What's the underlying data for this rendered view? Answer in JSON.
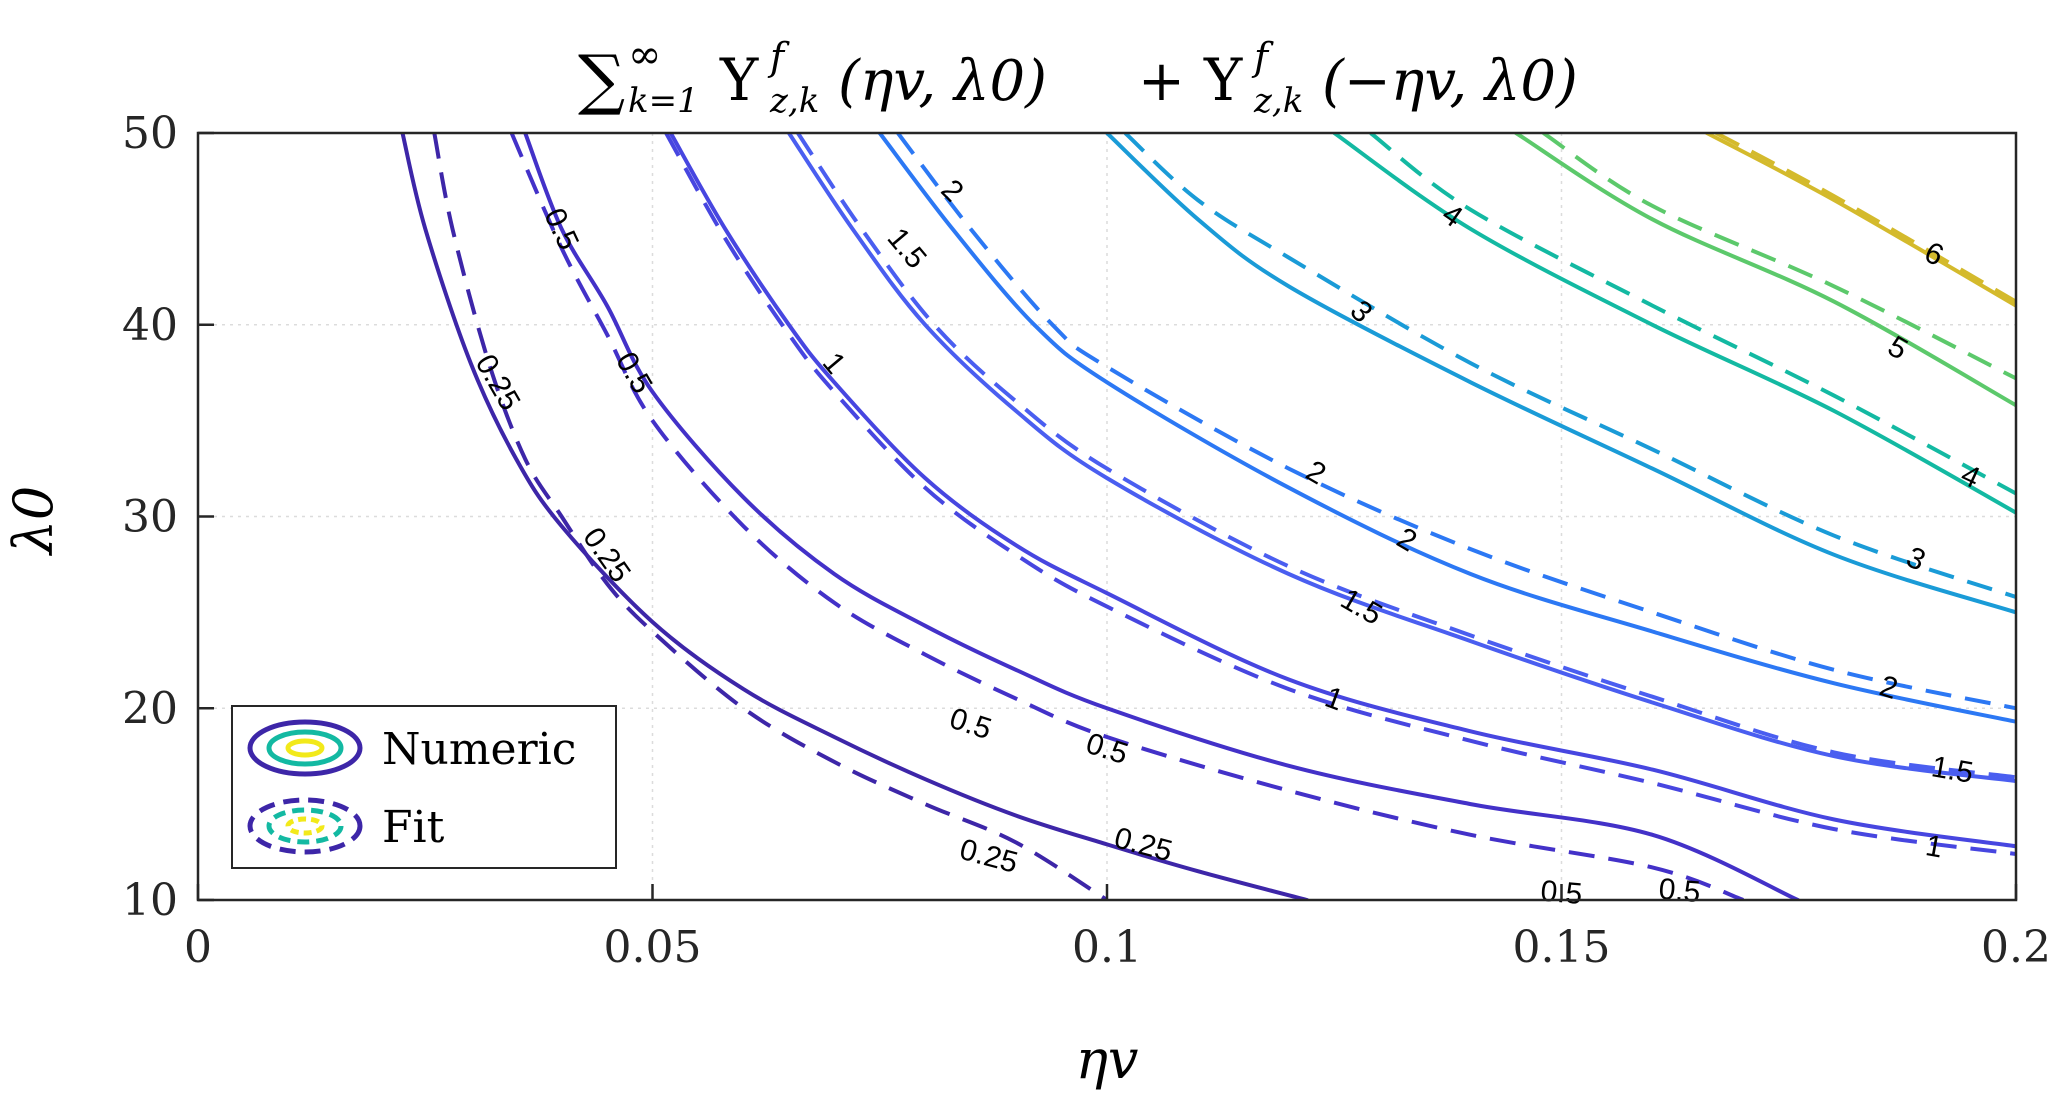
{
  "chart_data": {
    "type": "contour",
    "title": {
      "pre": "∑",
      "k_sub": "k=1",
      "inf_sup": "∞",
      "ups": "Υ",
      "f_sup": "f",
      "zk_sub": "z,k",
      "left_args": "(ηv, λ0)",
      "plus": "+",
      "right_args": "(−ηv, λ0)"
    },
    "xlabel": "ηv",
    "ylabel": "λ0",
    "xlim": [
      0,
      0.2
    ],
    "ylim": [
      10,
      50
    ],
    "x_ticks": [
      0,
      0.05,
      0.1,
      0.15,
      0.2
    ],
    "x_tick_labels": [
      "0",
      "0.05",
      "0.1",
      "0.15",
      "0.2"
    ],
    "y_ticks": [
      10,
      20,
      30,
      40,
      50
    ],
    "y_tick_labels": [
      "10",
      "20",
      "30",
      "40",
      "50"
    ],
    "grid": true,
    "legend": {
      "position": "bottom-left",
      "entries": [
        {
          "label": "Numeric",
          "style": "solid"
        },
        {
          "label": "Fit",
          "style": "dashed"
        }
      ]
    },
    "levels": [
      {
        "level": 0.25,
        "color": "#3d26a8",
        "numeric": [
          [
            0.0225,
            50
          ],
          [
            0.025,
            45
          ],
          [
            0.03,
            38
          ],
          [
            0.035,
            33
          ],
          [
            0.04,
            29.5
          ],
          [
            0.05,
            24.5
          ],
          [
            0.06,
            21
          ],
          [
            0.07,
            18.5
          ],
          [
            0.08,
            16.3
          ],
          [
            0.09,
            14.4
          ],
          [
            0.1,
            12.9
          ],
          [
            0.11,
            11.5
          ],
          [
            0.122,
            10
          ]
        ],
        "fit": [
          [
            0.026,
            50
          ],
          [
            0.028,
            45
          ],
          [
            0.032,
            38
          ],
          [
            0.036,
            33
          ],
          [
            0.04,
            30
          ],
          [
            0.045,
            26.5
          ],
          [
            0.05,
            24
          ],
          [
            0.06,
            20
          ],
          [
            0.07,
            17.2
          ],
          [
            0.08,
            15
          ],
          [
            0.09,
            13
          ],
          [
            0.1,
            10
          ]
        ]
      },
      {
        "level": 0.5,
        "color": "#4331c8",
        "numeric": [
          [
            0.036,
            50
          ],
          [
            0.04,
            45
          ],
          [
            0.045,
            41
          ],
          [
            0.05,
            36.5
          ],
          [
            0.06,
            31
          ],
          [
            0.07,
            27
          ],
          [
            0.08,
            24.3
          ],
          [
            0.09,
            22
          ],
          [
            0.1,
            20
          ],
          [
            0.12,
            17
          ],
          [
            0.14,
            15
          ],
          [
            0.16,
            13.4
          ],
          [
            0.176,
            10
          ]
        ],
        "fit": [
          [
            0.0345,
            50
          ],
          [
            0.04,
            44
          ],
          [
            0.045,
            39.5
          ],
          [
            0.05,
            35
          ],
          [
            0.06,
            29.5
          ],
          [
            0.07,
            25.5
          ],
          [
            0.08,
            22.8
          ],
          [
            0.09,
            20.5
          ],
          [
            0.1,
            18.5
          ],
          [
            0.12,
            15.7
          ],
          [
            0.14,
            13.4
          ],
          [
            0.16,
            11.7
          ],
          [
            0.17,
            10
          ]
        ]
      },
      {
        "level": 1,
        "color": "#4746e0",
        "numeric": [
          [
            0.052,
            50
          ],
          [
            0.058,
            45
          ],
          [
            0.065,
            40
          ],
          [
            0.07,
            37
          ],
          [
            0.08,
            32
          ],
          [
            0.09,
            28.5
          ],
          [
            0.1,
            26
          ],
          [
            0.12,
            21.5
          ],
          [
            0.14,
            18.8
          ],
          [
            0.16,
            16.8
          ],
          [
            0.18,
            14.2
          ],
          [
            0.2,
            12.8
          ]
        ],
        "fit": [
          [
            0.0515,
            50
          ],
          [
            0.058,
            44.5
          ],
          [
            0.065,
            39.5
          ],
          [
            0.07,
            36.5
          ],
          [
            0.08,
            31.5
          ],
          [
            0.09,
            28
          ],
          [
            0.1,
            25.3
          ],
          [
            0.12,
            21
          ],
          [
            0.14,
            18.3
          ],
          [
            0.16,
            16.1
          ],
          [
            0.18,
            13.7
          ],
          [
            0.2,
            12.4
          ]
        ]
      },
      {
        "level": 1.5,
        "color": "#4a5ef0",
        "numeric": [
          [
            0.065,
            50
          ],
          [
            0.072,
            45
          ],
          [
            0.08,
            40
          ],
          [
            0.09,
            35.5
          ],
          [
            0.1,
            32
          ],
          [
            0.12,
            27
          ],
          [
            0.14,
            23.5
          ],
          [
            0.16,
            20.3
          ],
          [
            0.18,
            17.5
          ],
          [
            0.2,
            16.2
          ]
        ],
        "fit": [
          [
            0.066,
            50
          ],
          [
            0.073,
            45
          ],
          [
            0.081,
            40
          ],
          [
            0.09,
            36
          ],
          [
            0.1,
            32.5
          ],
          [
            0.12,
            27.4
          ],
          [
            0.14,
            23.8
          ],
          [
            0.16,
            20.6
          ],
          [
            0.18,
            17.7
          ],
          [
            0.2,
            16.4
          ]
        ]
      },
      {
        "level": 2,
        "color": "#2c78f4",
        "numeric": [
          [
            0.075,
            50
          ],
          [
            0.083,
            45
          ],
          [
            0.092,
            40
          ],
          [
            0.1,
            37
          ],
          [
            0.12,
            31.5
          ],
          [
            0.14,
            27
          ],
          [
            0.16,
            24
          ],
          [
            0.18,
            21.3
          ],
          [
            0.2,
            19.3
          ]
        ],
        "fit": [
          [
            0.077,
            50
          ],
          [
            0.085,
            45
          ],
          [
            0.094,
            40
          ],
          [
            0.1,
            37.8
          ],
          [
            0.12,
            32.5
          ],
          [
            0.14,
            28.3
          ],
          [
            0.16,
            25
          ],
          [
            0.18,
            22
          ],
          [
            0.2,
            20
          ]
        ]
      },
      {
        "level": 3,
        "color": "#1a9bd7",
        "numeric": [
          [
            0.1,
            50
          ],
          [
            0.11,
            45.5
          ],
          [
            0.12,
            42
          ],
          [
            0.14,
            37
          ],
          [
            0.16,
            32.5
          ],
          [
            0.18,
            28
          ],
          [
            0.2,
            25
          ]
        ],
        "fit": [
          [
            0.102,
            50
          ],
          [
            0.11,
            46.5
          ],
          [
            0.12,
            43.5
          ],
          [
            0.14,
            38
          ],
          [
            0.16,
            33.5
          ],
          [
            0.18,
            29
          ],
          [
            0.2,
            25.8
          ]
        ]
      },
      {
        "level": 4,
        "color": "#13b9a2",
        "numeric": [
          [
            0.125,
            50
          ],
          [
            0.14,
            45
          ],
          [
            0.16,
            40
          ],
          [
            0.18,
            35.5
          ],
          [
            0.2,
            30.2
          ]
        ],
        "fit": [
          [
            0.129,
            50
          ],
          [
            0.14,
            46
          ],
          [
            0.16,
            41
          ],
          [
            0.18,
            36.3
          ],
          [
            0.2,
            31.2
          ]
        ]
      },
      {
        "level": 5,
        "color": "#5cc96b",
        "numeric": [
          [
            0.145,
            50
          ],
          [
            0.16,
            45.5
          ],
          [
            0.18,
            41.2
          ],
          [
            0.2,
            35.8
          ]
        ],
        "fit": [
          [
            0.148,
            50
          ],
          [
            0.16,
            46.2
          ],
          [
            0.18,
            42
          ],
          [
            0.2,
            37.2
          ]
        ]
      },
      {
        "level": 6,
        "color": "#d4ba2c",
        "numeric": [
          [
            0.166,
            50
          ],
          [
            0.18,
            46.5
          ],
          [
            0.2,
            41
          ]
        ],
        "fit": [
          [
            0.167,
            50
          ],
          [
            0.18,
            46.7
          ],
          [
            0.2,
            41.2
          ]
        ]
      }
    ],
    "contour_labels": [
      {
        "text": "0.25",
        "x": 0.033,
        "y": 37,
        "angle": 60
      },
      {
        "text": "0.25",
        "x": 0.045,
        "y": 28,
        "angle": 55
      },
      {
        "text": "0.25",
        "x": 0.087,
        "y": 12.3,
        "angle": 15
      },
      {
        "text": "0.25",
        "x": 0.104,
        "y": 12.9,
        "angle": 15
      },
      {
        "text": "0.5",
        "x": 0.04,
        "y": 45,
        "angle": 65
      },
      {
        "text": "0.5",
        "x": 0.048,
        "y": 37.5,
        "angle": 60
      },
      {
        "text": "0.5",
        "x": 0.085,
        "y": 19.2,
        "angle": 18
      },
      {
        "text": "0.5",
        "x": 0.1,
        "y": 17.9,
        "angle": 18
      },
      {
        "text": "0.5",
        "x": 0.15,
        "y": 10.4,
        "angle": 5
      },
      {
        "text": "0.5",
        "x": 0.163,
        "y": 10.5,
        "angle": 5
      },
      {
        "text": "1",
        "x": 0.07,
        "y": 38,
        "angle": 50
      },
      {
        "text": "1",
        "x": 0.125,
        "y": 20.5,
        "angle": 20
      },
      {
        "text": "1",
        "x": 0.191,
        "y": 12.8,
        "angle": 10
      },
      {
        "text": "1.5",
        "x": 0.078,
        "y": 44,
        "angle": 50
      },
      {
        "text": "1.5",
        "x": 0.128,
        "y": 25.3,
        "angle": 30
      },
      {
        "text": "1.5",
        "x": 0.193,
        "y": 16.8,
        "angle": 10
      },
      {
        "text": "2",
        "x": 0.083,
        "y": 47,
        "angle": 45
      },
      {
        "text": "2",
        "x": 0.123,
        "y": 32.3,
        "angle": 30
      },
      {
        "text": "2",
        "x": 0.133,
        "y": 28.8,
        "angle": 30
      },
      {
        "text": "2",
        "x": 0.186,
        "y": 21.1,
        "angle": 18
      },
      {
        "text": "3",
        "x": 0.128,
        "y": 40.7,
        "angle": 45
      },
      {
        "text": "3",
        "x": 0.189,
        "y": 27.8,
        "angle": 25
      },
      {
        "text": "4",
        "x": 0.138,
        "y": 45.7,
        "angle": 35
      },
      {
        "text": "4",
        "x": 0.195,
        "y": 32.1,
        "angle": 25
      },
      {
        "text": "5",
        "x": 0.187,
        "y": 38.8,
        "angle": 30
      },
      {
        "text": "6",
        "x": 0.191,
        "y": 43.7,
        "angle": 25
      }
    ]
  }
}
